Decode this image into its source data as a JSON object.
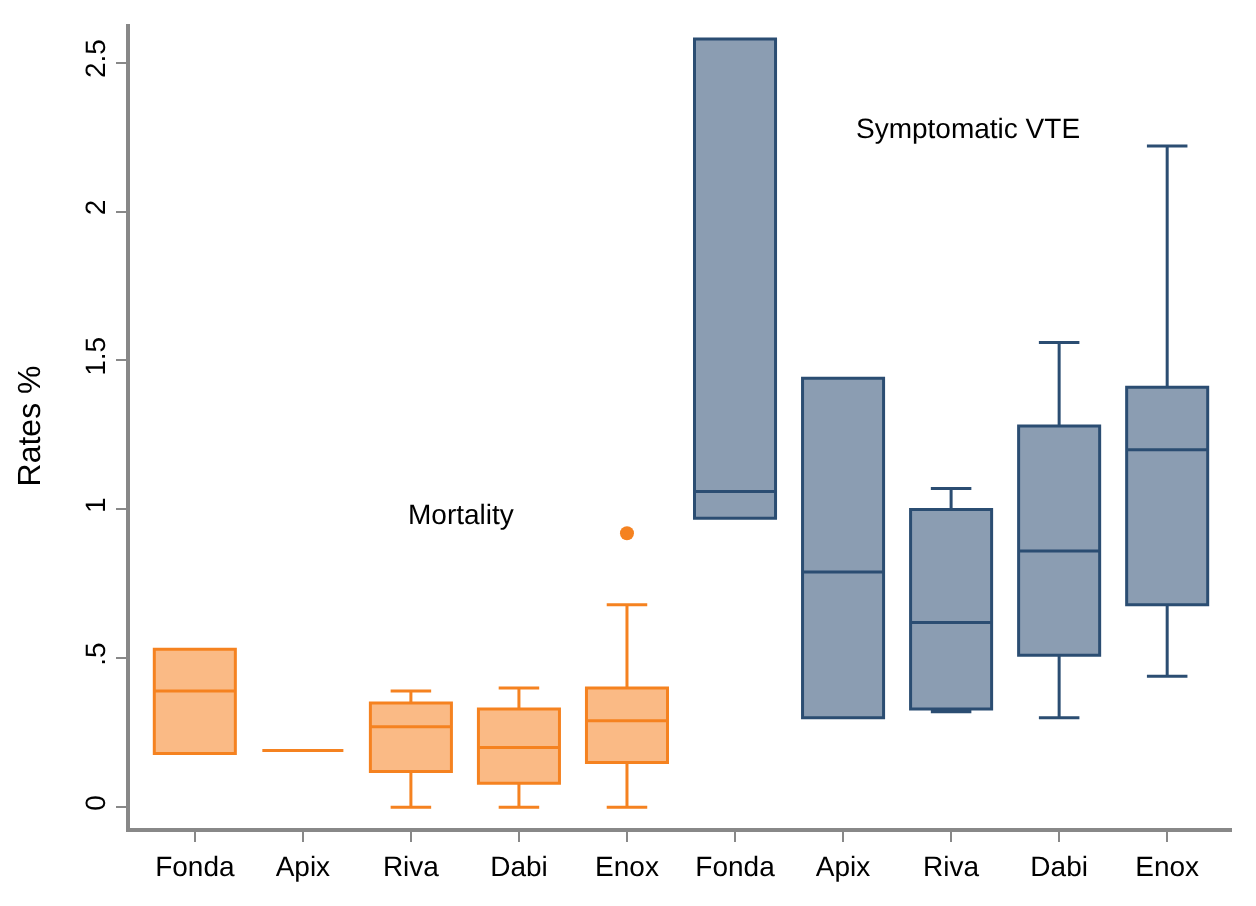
{
  "chart_data": {
    "type": "box",
    "ylabel": "Rates %",
    "categories": [
      "Fonda",
      "Apix",
      "Riva",
      "Dabi",
      "Enox",
      "Fonda",
      "Apix",
      "Riva",
      "Dabi",
      "Enox"
    ],
    "ylim": [
      -0.07,
      2.63
    ],
    "yticks": [
      0,
      {
        "value": 0.5,
        "label": ".5"
      },
      1,
      1.5,
      2,
      2.5
    ],
    "annotations": [
      "Mortality",
      "Symptomatic VTE"
    ],
    "series": [
      {
        "color": "#f58220",
        "boxes": [
          {
            "low": 0.18,
            "q1": 0.18,
            "median": 0.39,
            "q3": 0.53,
            "high": 0.53
          },
          {
            "low": 0.19,
            "q1": 0.19,
            "median": 0.19,
            "q3": 0.19,
            "high": 0.19
          },
          {
            "low": 0,
            "q1": 0.12,
            "median": 0.27,
            "q3": 0.35,
            "high": 0.39
          },
          {
            "low": 0,
            "q1": 0.08,
            "median": 0.2,
            "q3": 0.33,
            "high": 0.4
          },
          {
            "low": 0,
            "q1": 0.15,
            "median": 0.29,
            "q3": 0.4,
            "high": 0.68,
            "outliers": [
              0.92
            ]
          },
          null,
          null,
          null,
          null,
          null
        ]
      },
      {
        "color": "#2b4d72",
        "boxes": [
          null,
          null,
          null,
          null,
          null,
          {
            "low": 0.97,
            "q1": 0.97,
            "median": 1.06,
            "q3": 2.58,
            "high": 2.58
          },
          {
            "low": 0.3,
            "q1": 0.3,
            "median": 0.79,
            "q3": 1.44,
            "high": 1.44
          },
          {
            "low": 0.32,
            "q1": 0.33,
            "median": 0.62,
            "q3": 1.0,
            "high": 1.07
          },
          {
            "low": 0.3,
            "q1": 0.51,
            "median": 0.86,
            "q3": 1.28,
            "high": 1.56
          },
          {
            "low": 0.44,
            "q1": 0.68,
            "median": 1.2,
            "q3": 1.41,
            "high": 2.22
          }
        ]
      }
    ]
  }
}
